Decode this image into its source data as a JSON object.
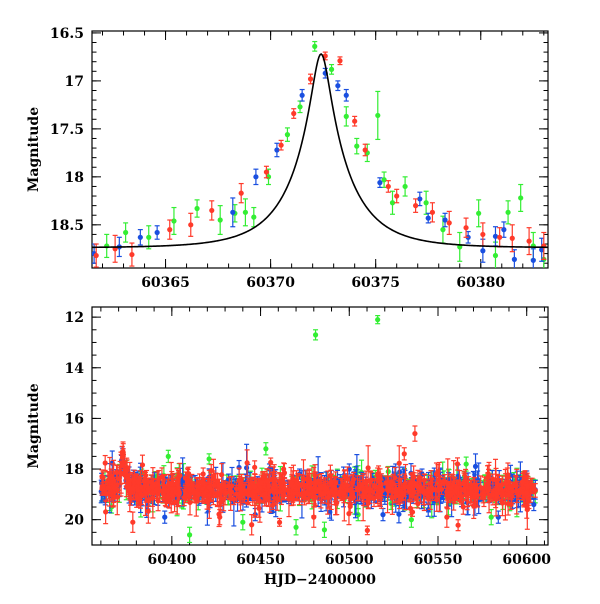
{
  "colors": {
    "green": "#33ee33",
    "blue": "#1a4fe0",
    "red": "#ff3a2a",
    "model": "#000000",
    "frame": "#000000"
  },
  "chart_data": [
    {
      "type": "scatter",
      "title": "",
      "xlabel": "",
      "ylabel": "Magnitude",
      "xlim": [
        60361.5,
        60383.2
      ],
      "ylim": [
        18.95,
        16.48
      ],
      "y_inverted": true,
      "grid": false,
      "legend": "none",
      "x_tick_labels": [
        "60365",
        "60370",
        "60375",
        "60380"
      ],
      "x_ticks": [
        60365,
        60370,
        60375,
        60380
      ],
      "y_tick_labels": [
        "16.5",
        "17",
        "17.5",
        "18",
        "18.5"
      ],
      "y_ticks": [
        16.5,
        17,
        17.5,
        18,
        18.5
      ],
      "model": {
        "type": "line",
        "description_values": {
          "peak_x": 60372.4,
          "peak_y": 16.72,
          "baseline_y": 18.74,
          "tE": 2.6
        }
      },
      "series": [
        {
          "color": "green",
          "points": [
            [
              60362.2,
              18.72,
              0.12
            ],
            [
              60363.1,
              18.58,
              0.1
            ],
            [
              60364.2,
              18.63,
              0.12
            ],
            [
              60365.4,
              18.46,
              0.14
            ],
            [
              60366.5,
              18.33,
              0.09
            ],
            [
              60367.6,
              18.45,
              0.15
            ],
            [
              60368.3,
              18.38,
              0.09
            ],
            [
              60368.8,
              18.37,
              0.14
            ],
            [
              60369.2,
              18.42,
              0.1
            ],
            [
              60369.9,
              18.0,
              0.08
            ],
            [
              60370.8,
              17.56,
              0.07
            ],
            [
              60371.4,
              17.27,
              0.06
            ],
            [
              60372.1,
              16.64,
              0.05
            ],
            [
              60372.9,
              16.88,
              0.05
            ],
            [
              60373.6,
              17.37,
              0.1
            ],
            [
              60374.1,
              17.68,
              0.08
            ],
            [
              60374.6,
              17.75,
              0.09
            ],
            [
              60375.1,
              17.36,
              0.25
            ],
            [
              60375.4,
              18.03,
              0.08
            ],
            [
              60375.8,
              18.27,
              0.12
            ],
            [
              60376.4,
              18.1,
              0.1
            ],
            [
              60377.4,
              18.27,
              0.12
            ],
            [
              60378.2,
              18.55,
              0.14
            ],
            [
              60379.0,
              18.73,
              0.15
            ],
            [
              60379.9,
              18.38,
              0.14
            ],
            [
              60380.7,
              18.82,
              0.14
            ],
            [
              60381.3,
              18.37,
              0.12
            ],
            [
              60381.9,
              18.22,
              0.14
            ],
            [
              60382.5,
              18.72,
              0.14
            ],
            [
              60383.0,
              18.86,
              0.15
            ]
          ]
        },
        {
          "color": "blue",
          "points": [
            [
              60361.6,
              18.8,
              0.1
            ],
            [
              60362.8,
              18.73,
              0.1
            ],
            [
              60363.8,
              18.63,
              0.08
            ],
            [
              60364.6,
              18.58,
              0.07
            ],
            [
              60368.2,
              18.37,
              0.15
            ],
            [
              60369.3,
              18.0,
              0.08
            ],
            [
              60370.3,
              17.72,
              0.07
            ],
            [
              60371.5,
              17.15,
              0.06
            ],
            [
              60372.6,
              16.92,
              0.05
            ],
            [
              60373.2,
              17.05,
              0.05
            ],
            [
              60373.6,
              17.15,
              0.06
            ],
            [
              60375.2,
              18.06,
              0.05
            ],
            [
              60377.1,
              18.23,
              0.07
            ],
            [
              60377.5,
              18.43,
              0.05
            ],
            [
              60378.3,
              18.45,
              0.07
            ],
            [
              60379.4,
              18.63,
              0.06
            ],
            [
              60380.1,
              18.77,
              0.12
            ],
            [
              60380.7,
              18.62,
              0.1
            ],
            [
              60381.1,
              18.55,
              0.08
            ],
            [
              60381.6,
              18.86,
              0.1
            ],
            [
              60382.5,
              18.87,
              0.12
            ],
            [
              60382.9,
              18.76,
              0.12
            ]
          ]
        },
        {
          "color": "red",
          "points": [
            [
              60361.7,
              18.82,
              0.12
            ],
            [
              60362.6,
              18.75,
              0.14
            ],
            [
              60363.4,
              18.81,
              0.12
            ],
            [
              60365.2,
              18.55,
              0.1
            ],
            [
              60366.2,
              18.5,
              0.12
            ],
            [
              60367.2,
              18.35,
              0.1
            ],
            [
              60368.6,
              18.17,
              0.1
            ],
            [
              60369.8,
              17.95,
              0.06
            ],
            [
              60370.5,
              17.67,
              0.05
            ],
            [
              60371.1,
              17.34,
              0.05
            ],
            [
              60371.9,
              16.98,
              0.05
            ],
            [
              60372.6,
              16.74,
              0.04
            ],
            [
              60373.3,
              16.79,
              0.04
            ],
            [
              60374.0,
              17.42,
              0.05
            ],
            [
              60374.5,
              17.72,
              0.06
            ],
            [
              60375.6,
              18.1,
              0.06
            ],
            [
              60376.0,
              18.2,
              0.07
            ],
            [
              60376.9,
              18.3,
              0.07
            ],
            [
              60377.7,
              18.37,
              0.1
            ],
            [
              60378.5,
              18.48,
              0.12
            ],
            [
              60379.3,
              18.53,
              0.1
            ],
            [
              60380.1,
              18.6,
              0.12
            ],
            [
              60380.9,
              18.63,
              0.1
            ],
            [
              60381.5,
              18.64,
              0.14
            ],
            [
              60382.3,
              18.67,
              0.14
            ],
            [
              60383.0,
              18.72,
              0.14
            ]
          ]
        }
      ]
    },
    {
      "type": "scatter",
      "title": "",
      "xlabel": "HJD−2400000",
      "ylabel": "Magnitude",
      "xlim": [
        60355,
        60612
      ],
      "ylim": [
        21.0,
        11.6
      ],
      "y_inverted": true,
      "grid": false,
      "legend": "none",
      "x_tick_labels": [
        "60400",
        "60450",
        "60500",
        "60550",
        "60600"
      ],
      "x_ticks": [
        60400,
        60450,
        60500,
        60550,
        60600
      ],
      "y_tick_labels": [
        "12",
        "14",
        "16",
        "18",
        "20"
      ],
      "y_ticks": [
        12,
        14,
        16,
        18,
        20
      ],
      "baseline_band": {
        "x_start": 60360,
        "x_end": 60605,
        "center": 18.8,
        "scatter": 0.4
      },
      "peak": {
        "x": 60372.4,
        "y": 16.7
      },
      "series": [
        {
          "color": "green",
          "outliers": [
            [
              60481,
              12.7,
              0.1
            ],
            [
              60516,
              12.1,
              0.08
            ],
            [
              60453,
              17.2,
              0.12
            ],
            [
              60398,
              17.5,
              0.12
            ],
            [
              60421,
              17.6,
              0.1
            ],
            [
              60383,
              18.2,
              0.1
            ],
            [
              60391,
              18.3,
              0.1
            ],
            [
              60410,
              20.6,
              0.15
            ],
            [
              60440,
              20.1,
              0.15
            ],
            [
              60470,
              20.3,
              0.15
            ],
            [
              60505,
              19.8,
              0.12
            ],
            [
              60535,
              20.0,
              0.15
            ],
            [
              60580,
              19.9,
              0.15
            ],
            [
              60565,
              18.3,
              0.1
            ],
            [
              60598,
              18.3,
              0.1
            ],
            [
              60522,
              18.1,
              0.1
            ],
            [
              60366,
              19.5,
              0.12
            ],
            [
              60486,
              20.4,
              0.15
            ]
          ]
        },
        {
          "color": "blue",
          "outliers": [
            [
              60396,
              19.9,
              0.12
            ],
            [
              60432,
              18.4,
              0.1
            ],
            [
              60447,
              19.8,
              0.12
            ],
            [
              60472,
              18.2,
              0.1
            ],
            [
              60500,
              18.0,
              0.1
            ],
            [
              60519,
              19.8,
              0.12
            ],
            [
              60541,
              18.2,
              0.1
            ],
            [
              60584,
              19.9,
              0.12
            ],
            [
              60604,
              19.4,
              0.12
            ],
            [
              60455,
              18.0,
              0.1
            ],
            [
              60489,
              19.7,
              0.12
            ]
          ]
        },
        {
          "color": "red",
          "outliers": [
            [
              60378,
              20.1,
              0.2
            ],
            [
              60381,
              19.2,
              0.15
            ],
            [
              60537,
              16.6,
              0.15
            ],
            [
              60531,
              17.4,
              0.12
            ],
            [
              60463,
              18.0,
              0.12
            ],
            [
              60516,
              18.2,
              0.12
            ],
            [
              60561,
              17.8,
              0.12
            ],
            [
              60445,
              20.2,
              0.2
            ],
            [
              60480,
              19.9,
              0.2
            ],
            [
              60555,
              19.9,
              0.2
            ],
            [
              60427,
              19.9,
              0.15
            ]
          ]
        }
      ]
    }
  ]
}
